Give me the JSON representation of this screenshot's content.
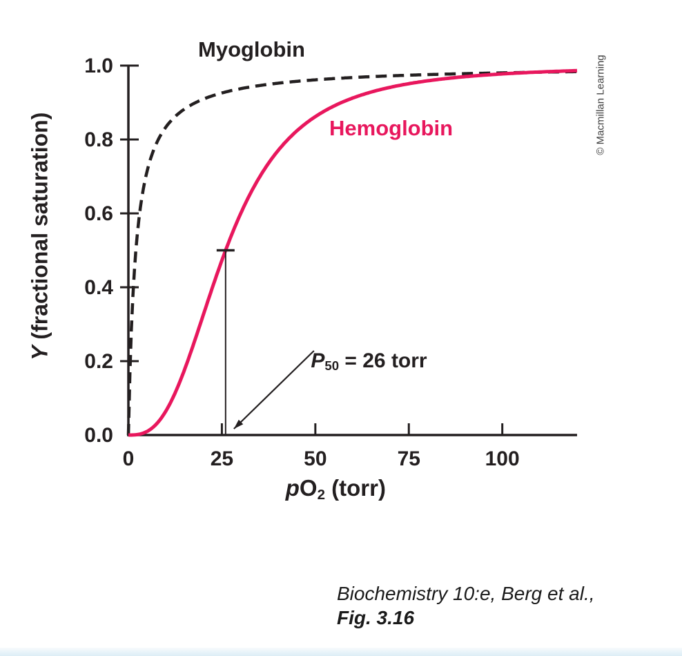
{
  "chart_data": {
    "type": "line",
    "title": "",
    "xlabel": {
      "italic": "p",
      "main": "O",
      "sub": "2",
      "rest": " (torr)"
    },
    "ylabel": {
      "italic": "Y",
      "rest": " (fractional saturation)"
    },
    "xlim": [
      0,
      120
    ],
    "ylim": [
      0,
      1.0
    ],
    "x_ticks": [
      0,
      25,
      50,
      75,
      100
    ],
    "y_ticks": [
      0.0,
      0.2,
      0.4,
      0.6,
      0.8,
      1.0
    ],
    "grid": false,
    "legend_position": "inline-labels",
    "axis_color": "#231f20",
    "series": [
      {
        "name": "Myoglobin",
        "color": "#231f20",
        "line_style": "dashed",
        "model": "hill",
        "p50_torr": 2,
        "hill_n": 1,
        "points": {
          "x": [
            0,
            1,
            2,
            5,
            10,
            20,
            40,
            60,
            80,
            100,
            120
          ],
          "y": [
            0,
            0.33,
            0.5,
            0.71,
            0.83,
            0.91,
            0.95,
            0.97,
            0.98,
            0.98,
            0.98
          ]
        }
      },
      {
        "name": "Hemoglobin",
        "color": "#e8175d",
        "line_style": "solid",
        "model": "hill",
        "p50_torr": 26,
        "hill_n": 2.8,
        "points": {
          "x": [
            0,
            5,
            10,
            15,
            20,
            26,
            30,
            40,
            50,
            60,
            80,
            100,
            120
          ],
          "y": [
            0,
            0.01,
            0.06,
            0.18,
            0.32,
            0.5,
            0.6,
            0.77,
            0.86,
            0.91,
            0.96,
            0.98,
            0.99
          ]
        }
      }
    ],
    "annotation": {
      "symbol": "P",
      "symbol_sub": "50",
      "text": " = 26 torr",
      "x_torr": 26,
      "y_fraction": 0.5
    }
  },
  "credit": "© Macmillan Learning",
  "caption": {
    "source": "Biochemistry 10:e, Berg et al.,",
    "figure": "Fig. 3.16"
  }
}
